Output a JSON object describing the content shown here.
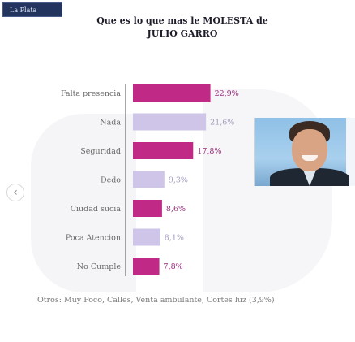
{
  "brand": "La Plata",
  "title_line1": "Que es lo que mas le MOLESTA de",
  "title_line2": "JULIO GARRO",
  "footnote": "Otros: Muy Poco, Calles, Venta ambulante, Cortes luz (3,9%)",
  "colors": {
    "strong": "#c02a86",
    "light": "#cec5e8",
    "strong_label": "#9b2a7c",
    "light_label": "#a49bbf"
  },
  "chart_data": {
    "type": "bar",
    "orientation": "horizontal",
    "title": "Que es lo que mas le MOLESTA de JULIO GARRO",
    "categories": [
      "Falta presencia",
      "Nada",
      "Seguridad",
      "Dedo",
      "Ciudad sucia",
      "Poca Atencion",
      "No Cumple"
    ],
    "values": [
      22.9,
      21.6,
      17.8,
      9.3,
      8.6,
      8.1,
      7.8
    ],
    "value_labels": [
      "22,9%",
      "21,6%",
      "17,8%",
      "9,3%",
      "8,6%",
      "8,1%",
      "7,8%"
    ],
    "bar_styles": [
      "strong",
      "light",
      "strong",
      "light",
      "strong",
      "light",
      "strong"
    ],
    "xlim": [
      0,
      23
    ]
  }
}
